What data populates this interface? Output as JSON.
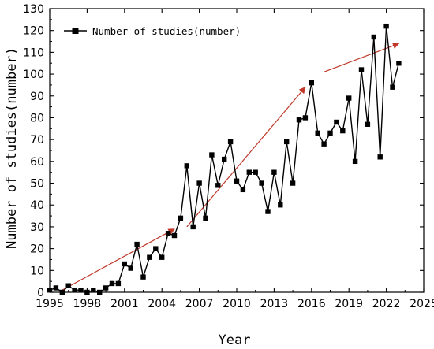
{
  "chart_data": {
    "type": "line",
    "xlabel": "Year",
    "ylabel": "Number of studies(number)",
    "xlim": [
      1995,
      2025
    ],
    "ylim": [
      0,
      130
    ],
    "xticks": [
      1995,
      1998,
      2001,
      2004,
      2007,
      2010,
      2013,
      2016,
      2019,
      2022,
      2025
    ],
    "yticks": [
      0,
      10,
      20,
      30,
      40,
      50,
      60,
      70,
      80,
      90,
      100,
      110,
      120,
      130
    ],
    "grid": false,
    "legend": "top-left",
    "series": [
      {
        "name": "Number of studies(number)",
        "color": "#000000",
        "marker": "square",
        "points": [
          [
            1995.0,
            1
          ],
          [
            1995.5,
            2
          ],
          [
            1996.0,
            0
          ],
          [
            1996.5,
            3
          ],
          [
            1997.0,
            1
          ],
          [
            1997.5,
            1
          ],
          [
            1998.0,
            0
          ],
          [
            1998.5,
            1
          ],
          [
            1999.0,
            0
          ],
          [
            1999.5,
            2
          ],
          [
            2000.0,
            4
          ],
          [
            2000.5,
            4
          ],
          [
            2001.0,
            13
          ],
          [
            2001.5,
            11
          ],
          [
            2002.0,
            22
          ],
          [
            2002.5,
            7
          ],
          [
            2003.0,
            16
          ],
          [
            2003.5,
            20
          ],
          [
            2004.0,
            16
          ],
          [
            2004.5,
            27
          ],
          [
            2005.0,
            26
          ],
          [
            2005.5,
            34
          ],
          [
            2006.0,
            58
          ],
          [
            2006.5,
            30
          ],
          [
            2007.0,
            50
          ],
          [
            2007.5,
            34
          ],
          [
            2008.0,
            63
          ],
          [
            2008.5,
            49
          ],
          [
            2009.0,
            61
          ],
          [
            2009.5,
            69
          ],
          [
            2010.0,
            51
          ],
          [
            2010.5,
            47
          ],
          [
            2011.0,
            55
          ],
          [
            2011.5,
            55
          ],
          [
            2012.0,
            50
          ],
          [
            2012.5,
            37
          ],
          [
            2013.0,
            55
          ],
          [
            2013.5,
            40
          ],
          [
            2014.0,
            69
          ],
          [
            2014.5,
            50
          ],
          [
            2015.0,
            79
          ],
          [
            2015.5,
            80
          ],
          [
            2016.0,
            96
          ],
          [
            2016.5,
            73
          ],
          [
            2017.0,
            68
          ],
          [
            2017.5,
            73
          ],
          [
            2018.0,
            78
          ],
          [
            2018.5,
            74
          ],
          [
            2019.0,
            89
          ],
          [
            2019.5,
            60
          ],
          [
            2020.0,
            102
          ],
          [
            2020.5,
            77
          ],
          [
            2021.0,
            117
          ],
          [
            2021.5,
            62
          ],
          [
            2022.0,
            122
          ],
          [
            2022.5,
            94
          ],
          [
            2023.0,
            105
          ]
        ]
      }
    ],
    "trend_arrows": {
      "color": "#c0392b",
      "segments": [
        {
          "from": [
            1996.0,
            1
          ],
          "to": [
            2005.0,
            29
          ]
        },
        {
          "from": [
            2006.0,
            30
          ],
          "to": [
            2015.5,
            94
          ]
        },
        {
          "from": [
            2017.0,
            101
          ],
          "to": [
            2023.0,
            114
          ]
        }
      ]
    }
  }
}
